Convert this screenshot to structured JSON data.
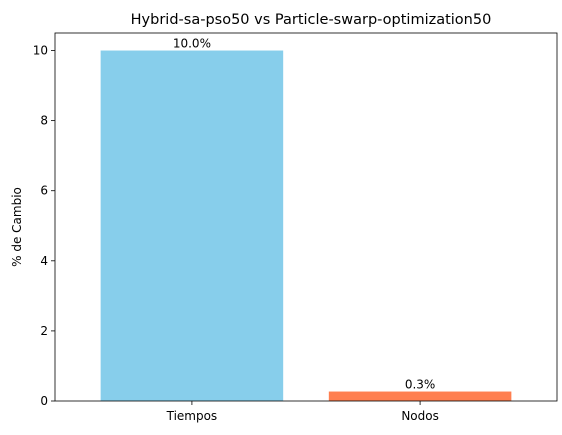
{
  "chart_data": {
    "type": "bar",
    "title": "Hybrid-sa-pso50 vs Particle-swarp-optimization50",
    "xlabel": "",
    "ylabel": "% de Cambio",
    "categories": [
      "Tiempos",
      "Nodos"
    ],
    "values": [
      10.0,
      0.27
    ],
    "data_labels": [
      "10.0%",
      "0.3%"
    ],
    "colors": [
      "#87ceeb",
      "#ff7f50"
    ],
    "ylim": [
      0,
      10.5
    ],
    "yticks": [
      0,
      2,
      4,
      6,
      8,
      10
    ],
    "ytick_labels": [
      "0",
      "2",
      "4",
      "6",
      "8",
      "10"
    ],
    "grid": false,
    "legend": "none"
  }
}
